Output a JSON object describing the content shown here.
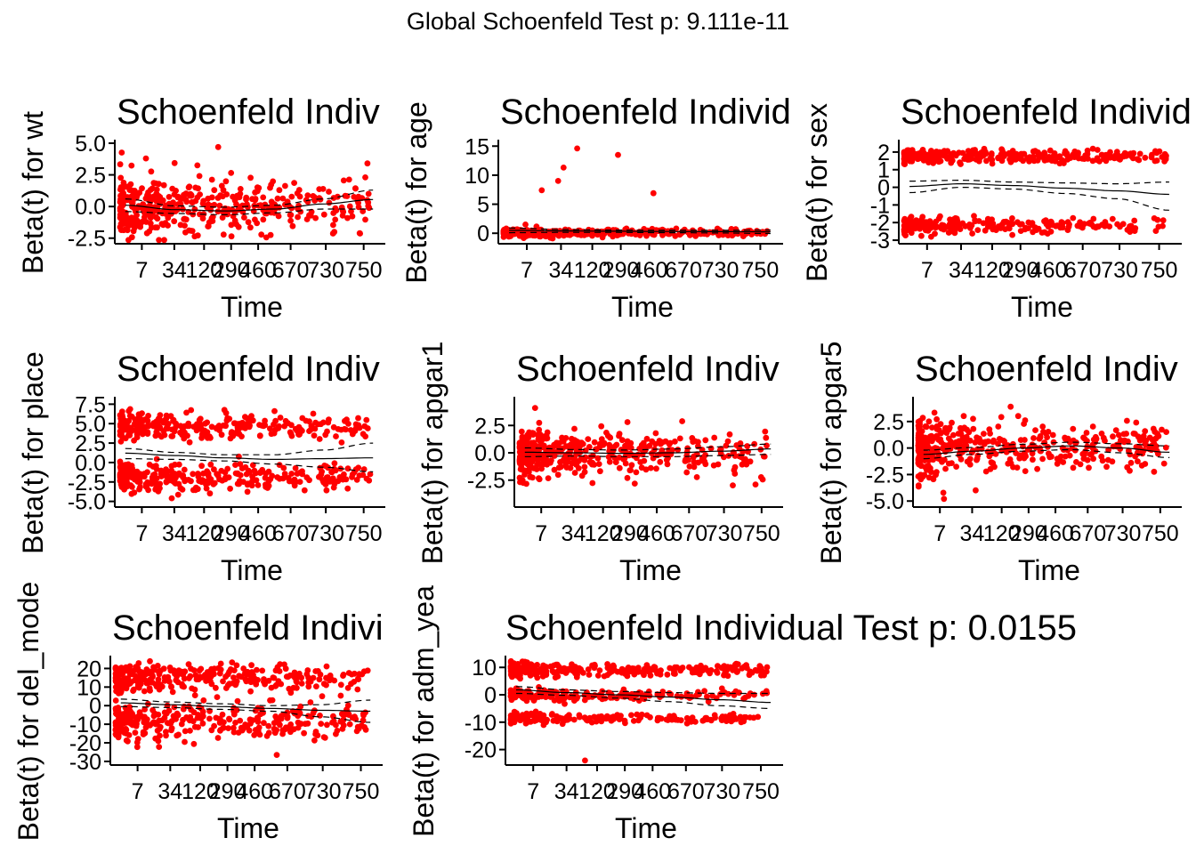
{
  "global_title": "Global Schoenfeld Test p: 9.111e-11",
  "colors": {
    "points": "#ff0000",
    "lines": "#000000",
    "background": "#ffffff"
  },
  "chart_data": [
    {
      "type": "scatter",
      "title": "Schoenfeld Indiv",
      "xlabel": "Time",
      "ylabel": "Beta(t) for wt",
      "x_ticks": [
        "7",
        "34",
        "120",
        "290",
        "460",
        "670",
        "730",
        "750"
      ],
      "y_ticks": [
        "-2.5",
        "0.0",
        "2.5",
        "5.0"
      ],
      "ylim": [
        -2.8,
        5.0
      ],
      "seed": 11,
      "clusters": [
        {
          "center": 0.0,
          "spread": 1.2,
          "n": 420,
          "extra": [
            [
              0.38,
              4.7
            ],
            [
              0.1,
              3.8
            ],
            [
              0.95,
              2.3
            ]
          ]
        }
      ],
      "fit": [
        0.1,
        -0.25,
        -0.35,
        -0.2,
        0.2,
        0.55
      ],
      "ci_upper": [
        0.6,
        0.05,
        -0.05,
        0.1,
        0.6,
        1.3
      ],
      "ci_lower": [
        -0.4,
        -0.55,
        -0.65,
        -0.5,
        -0.2,
        -0.2
      ]
    },
    {
      "type": "scatter",
      "title": "Schoenfeld Individ",
      "xlabel": "Time",
      "ylabel": "Beta(t) for age",
      "x_ticks": [
        "7",
        "34",
        "120",
        "290",
        "460",
        "670",
        "730",
        "750"
      ],
      "y_ticks": [
        "0",
        "5",
        "10",
        "15"
      ],
      "ylim": [
        -1.5,
        15.5
      ],
      "seed": 23,
      "clusters": [
        {
          "center": 0.1,
          "spread": 0.35,
          "n": 360,
          "extra": [
            [
              0.22,
              11.3
            ],
            [
              0.27,
              14.6
            ],
            [
              0.42,
              13.5
            ],
            [
              0.14,
              7.4
            ],
            [
              0.2,
              9.0
            ],
            [
              0.55,
              6.9
            ],
            [
              0.08,
              1.5
            ]
          ]
        }
      ],
      "fit": [
        0.5,
        0.4,
        0.35,
        0.3,
        0.28,
        0.25
      ],
      "ci_upper": [
        0.9,
        0.65,
        0.55,
        0.5,
        0.5,
        0.55
      ],
      "ci_lower": [
        0.1,
        0.15,
        0.15,
        0.1,
        0.05,
        -0.05
      ]
    },
    {
      "type": "scatter",
      "title": "Schoenfeld Individ",
      "xlabel": "Time",
      "ylabel": "Beta(t) for sex",
      "x_ticks": [
        "7",
        "34",
        "120",
        "290",
        "460",
        "670",
        "730",
        "750"
      ],
      "y_ticks": [
        "-3",
        "-2",
        "-1",
        "0",
        "1",
        "2"
      ],
      "ylim": [
        -3.1,
        2.5
      ],
      "seed": 37,
      "clusters": [
        {
          "center": 1.75,
          "spread": 0.22,
          "n": 300,
          "extra": []
        },
        {
          "center": -2.15,
          "spread": 0.22,
          "n": 230,
          "extra": [
            [
              0.1,
              -2.8
            ],
            [
              0.4,
              -2.7
            ]
          ]
        }
      ],
      "fit": [
        0.05,
        0.2,
        0.1,
        -0.05,
        -0.2,
        -0.4
      ],
      "ci_upper": [
        0.35,
        0.4,
        0.3,
        0.25,
        0.2,
        0.3
      ],
      "ci_lower": [
        -0.3,
        0.0,
        -0.1,
        -0.35,
        -0.65,
        -1.3
      ]
    },
    {
      "type": "scatter",
      "title": "Schoenfeld Indiv",
      "xlabel": "Time",
      "ylabel": "Beta(t) for place",
      "x_ticks": [
        "7",
        "34",
        "120",
        "290",
        "460",
        "670",
        "730",
        "750"
      ],
      "y_ticks": [
        "-5.0",
        "-2.5",
        "0.0",
        "2.5",
        "5.0",
        "7.5"
      ],
      "ylim": [
        -5.5,
        8.0
      ],
      "seed": 41,
      "clusters": [
        {
          "center": 4.6,
          "spread": 0.9,
          "n": 280,
          "extra": []
        },
        {
          "center": -1.9,
          "spread": 1.0,
          "n": 300,
          "extra": [
            [
              0.2,
              -4.6
            ]
          ]
        }
      ],
      "fit": [
        1.2,
        0.9,
        0.6,
        0.4,
        0.5,
        0.6
      ],
      "ci_upper": [
        1.8,
        1.3,
        1.0,
        1.0,
        1.6,
        2.5
      ],
      "ci_lower": [
        0.5,
        0.4,
        0.2,
        -0.2,
        -0.6,
        -1.2
      ]
    },
    {
      "type": "scatter",
      "title": "Schoenfeld Indiv",
      "xlabel": "Time",
      "ylabel": "Beta(t) for apgar1",
      "x_ticks": [
        "7",
        "34",
        "120",
        "290",
        "460",
        "670",
        "730",
        "750"
      ],
      "y_ticks": [
        "-2.5",
        "0.0",
        "2.5"
      ],
      "ylim": [
        -4.8,
        4.8
      ],
      "seed": 53,
      "clusters": [
        {
          "center": 0.0,
          "spread": 1.25,
          "n": 440,
          "extra": [
            [
              0.06,
              4.1
            ],
            [
              0.92,
              -2.9
            ]
          ]
        }
      ],
      "fit": [
        0.05,
        0.0,
        -0.05,
        0.0,
        0.15,
        0.35
      ],
      "ci_upper": [
        0.45,
        0.3,
        0.25,
        0.35,
        0.55,
        0.8
      ],
      "ci_lower": [
        -0.35,
        -0.3,
        -0.35,
        -0.35,
        -0.25,
        -0.15
      ]
    },
    {
      "type": "scatter",
      "title": "Schoenfeld Indiv",
      "xlabel": "Time",
      "ylabel": "Beta(t) for apgar5",
      "x_ticks": [
        "7",
        "34",
        "120",
        "290",
        "460",
        "670",
        "730",
        "750"
      ],
      "y_ticks": [
        "-5.0",
        "-2.5",
        "0.0",
        "2.5"
      ],
      "ylim": [
        -5.4,
        4.5
      ],
      "seed": 67,
      "clusters": [
        {
          "center": 0.0,
          "spread": 1.25,
          "n": 430,
          "extra": [
            [
              0.85,
              2.4
            ],
            [
              0.1,
              -4.8
            ],
            [
              0.36,
              3.9
            ]
          ]
        }
      ],
      "fit": [
        -0.6,
        -0.3,
        0.0,
        0.2,
        0.0,
        -0.4
      ],
      "ci_upper": [
        -0.2,
        0.05,
        0.35,
        0.55,
        0.4,
        0.2
      ],
      "ci_lower": [
        -1.0,
        -0.6,
        -0.3,
        -0.15,
        -0.45,
        -0.9
      ]
    },
    {
      "type": "scatter",
      "title": "Schoenfeld Indivi",
      "xlabel": "Time",
      "ylabel": "Beta(t) for del_mode",
      "x_ticks": [
        "7",
        "34",
        "120",
        "290",
        "460",
        "670",
        "730",
        "750"
      ],
      "y_ticks": [
        "-30",
        "-20",
        "-10",
        "0",
        "10",
        "20"
      ],
      "ylim": [
        -31,
        25
      ],
      "seed": 79,
      "clusters": [
        {
          "center": 15.0,
          "spread": 4.0,
          "n": 300,
          "extra": []
        },
        {
          "center": -8.5,
          "spread": 5.5,
          "n": 320,
          "extra": [
            [
              0.62,
              -26.5
            ]
          ]
        }
      ],
      "fit": [
        1.5,
        0.5,
        -0.5,
        -1.5,
        -2.5,
        -3.0
      ],
      "ci_upper": [
        3.5,
        2.0,
        1.0,
        0.0,
        0.5,
        3.0
      ],
      "ci_lower": [
        -0.5,
        -1.0,
        -2.0,
        -3.0,
        -6.0,
        -9.0
      ]
    },
    {
      "type": "scatter",
      "title": "Schoenfeld Individual Test p: 0.0155",
      "xlabel": "Time",
      "ylabel": "Beta(t) for adm_yea",
      "x_ticks": [
        "7",
        "34",
        "120",
        "290",
        "460",
        "670",
        "730",
        "750"
      ],
      "y_ticks": [
        "-20",
        "-10",
        "0",
        "10"
      ],
      "ylim": [
        -25,
        13
      ],
      "seed": 97,
      "clusters": [
        {
          "center": 9.0,
          "spread": 1.4,
          "n": 280,
          "extra": []
        },
        {
          "center": 0.0,
          "spread": 1.2,
          "n": 180,
          "extra": []
        },
        {
          "center": -8.5,
          "spread": 1.0,
          "n": 180,
          "extra": [
            [
              0.28,
              -24.0
            ]
          ]
        }
      ],
      "fit": [
        1.8,
        0.8,
        0.0,
        -0.8,
        -1.8,
        -2.8
      ],
      "ci_upper": [
        3.0,
        1.8,
        1.2,
        0.8,
        0.5,
        0.5
      ],
      "ci_lower": [
        0.5,
        -0.2,
        -1.2,
        -2.5,
        -4.0,
        -5.0
      ]
    }
  ]
}
